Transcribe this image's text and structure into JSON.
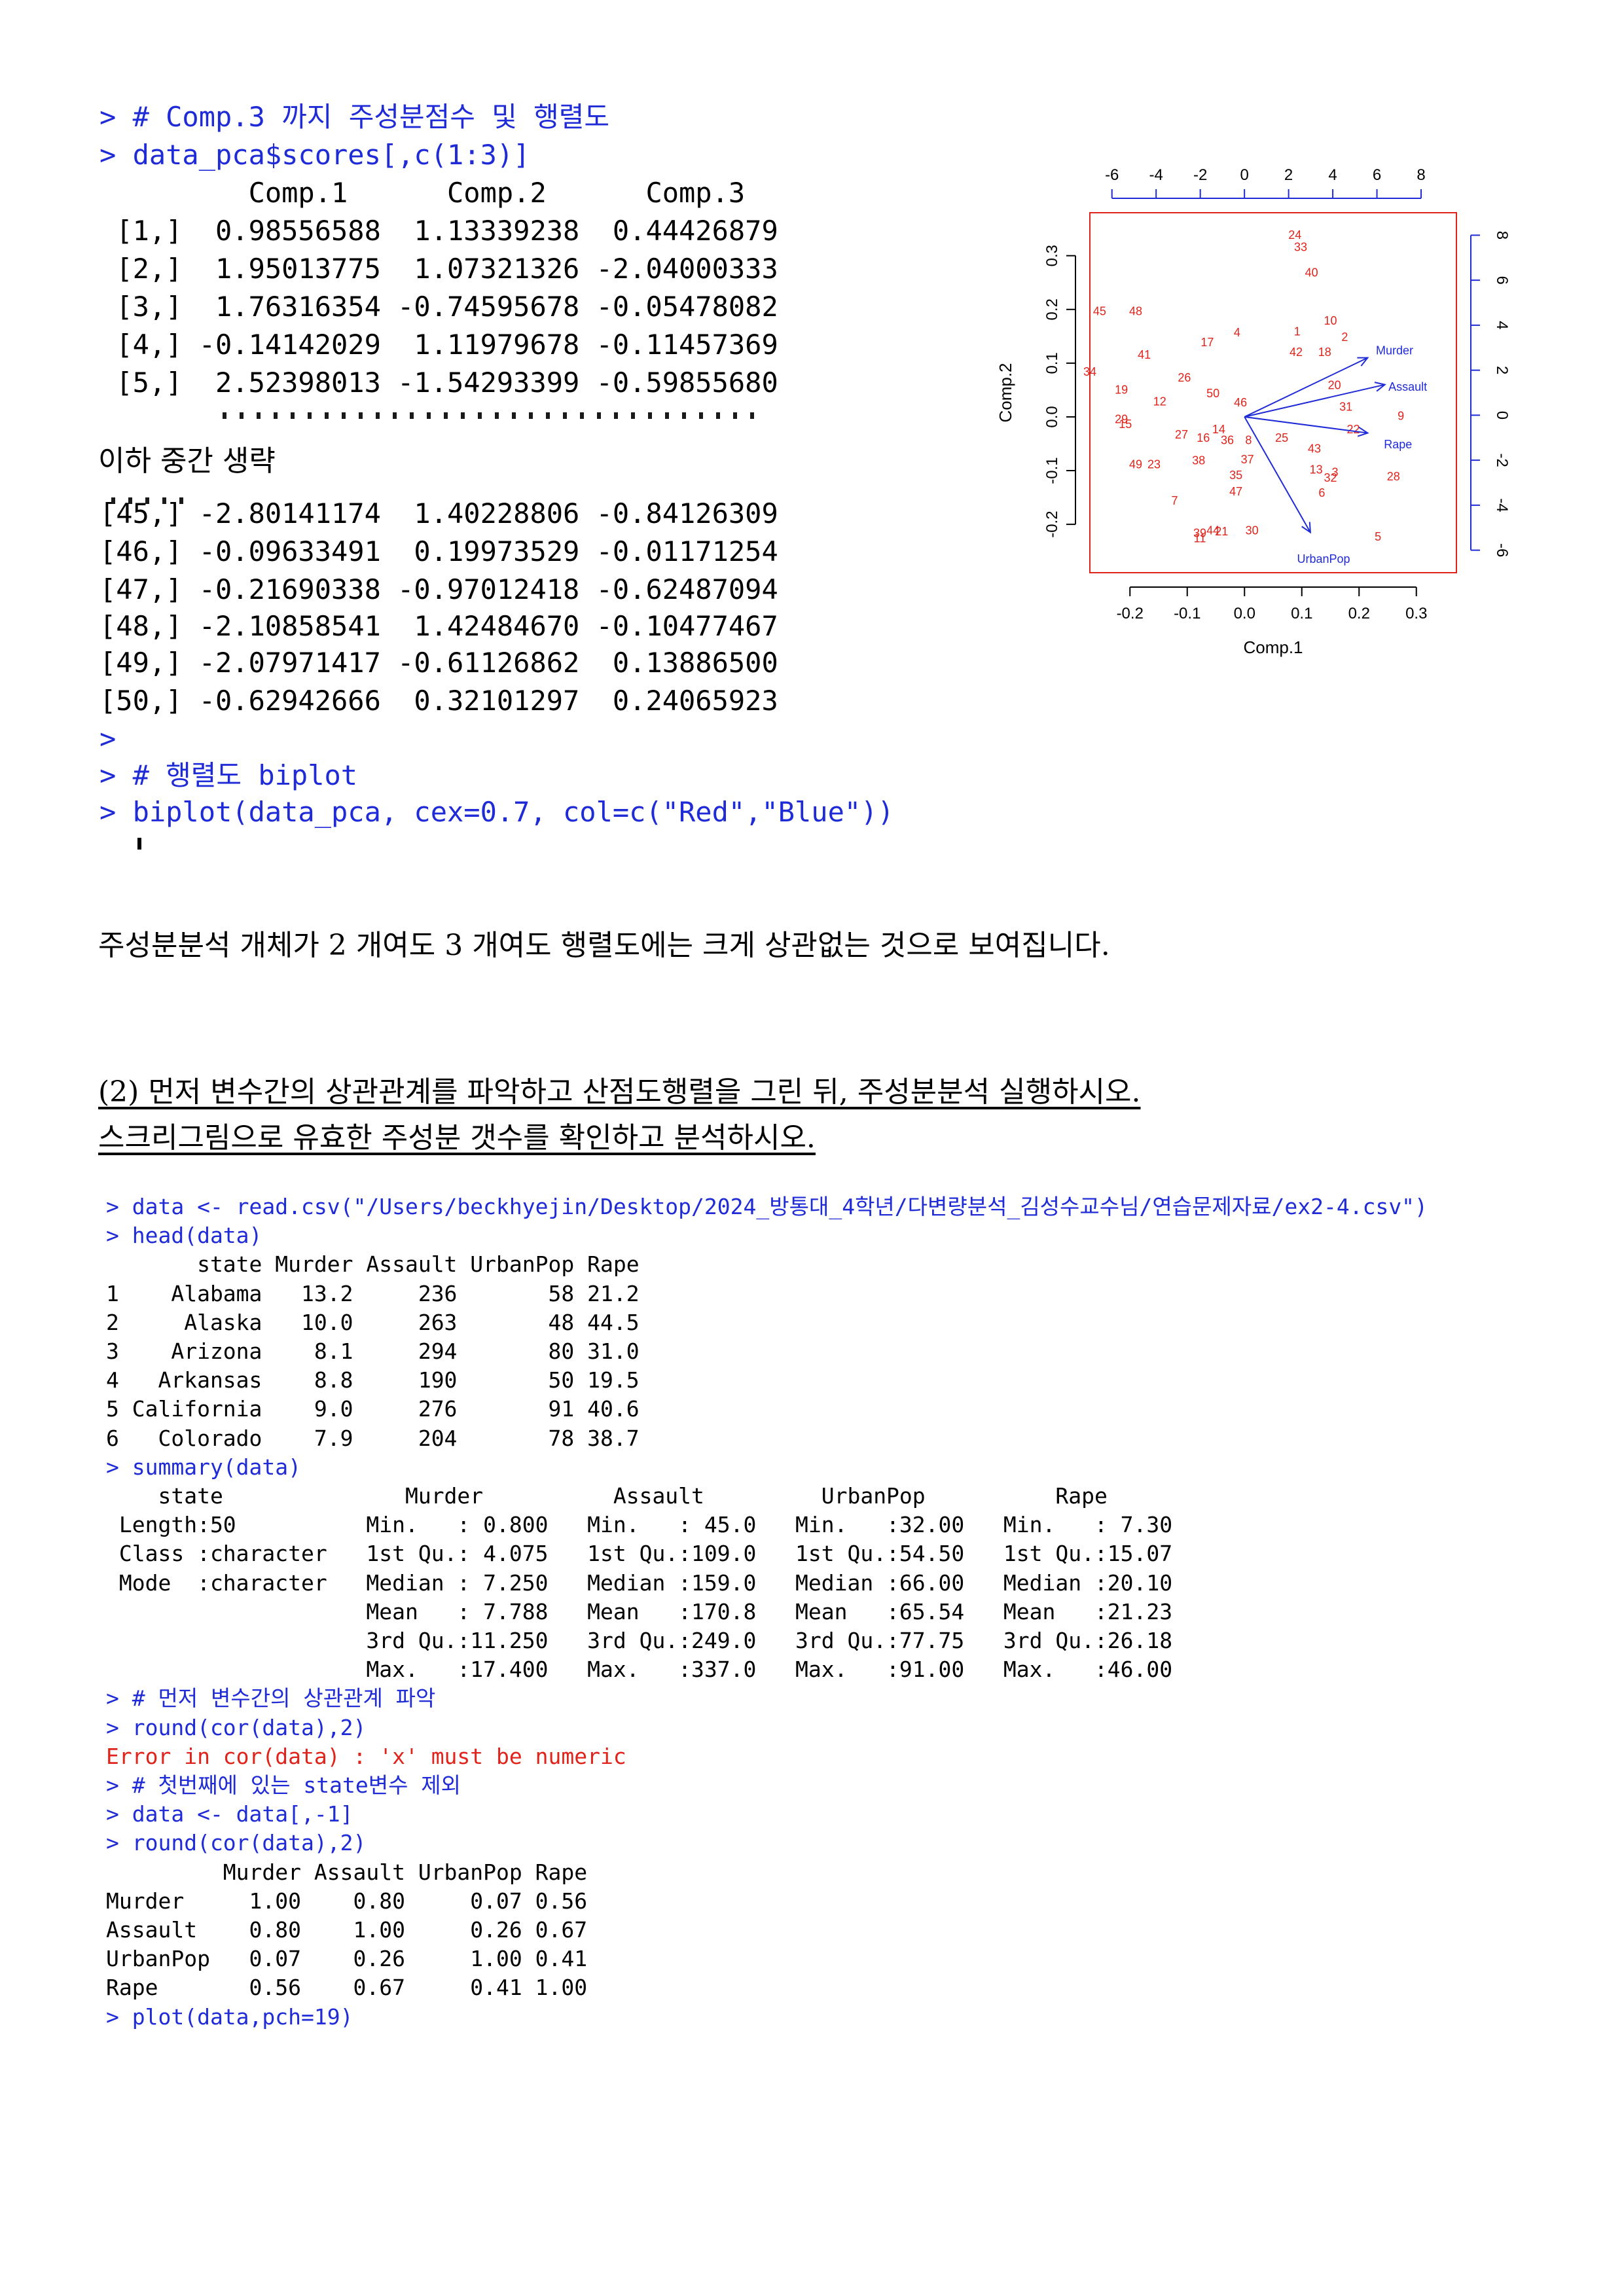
{
  "top_console": {
    "comment_line": "> # Comp.3 까지 주성분점수 및 행렬도",
    "command_line": "> data_pca$scores[,c(1:3)]",
    "header_line": "         Comp.1      Comp.2      Comp.3",
    "rows_first": [
      " [1,]  0.98556588  1.13339238  0.44426879",
      " [2,]  1.95013775  1.07321326 -2.04000333",
      " [3,]  1.76316354 -0.74595678 -0.05478082",
      " [4,] -0.14142029  1.11979678 -0.11457369",
      " [5,]  2.52398013 -1.54293399 -0.59855680"
    ],
    "omitted_note": "이하 중간 생략",
    "rows_last": [
      "[45,] -2.80141174  1.40228806 -0.84126309",
      "[46,] -0.09633491  0.19973529 -0.01171254",
      "[47,] -0.21690338 -0.97012418 -0.62487094",
      "[48,] -2.10858541  1.42484670 -0.10477467",
      "[49,] -2.07971417 -0.61126862  0.13886500",
      "[50,] -0.62942666  0.32101297  0.24065923"
    ],
    "prompt_line": ">",
    "biplot_comment": "> # 행렬도 biplot",
    "biplot_command": "> biplot(data_pca, cex=0.7, col=c(\"Red\",\"Blue\"))"
  },
  "conclusion_text": "주성분분석 개체가 2 개여도 3 개여도 행렬도에는 크게 상관없는 것으로 보여집니다.",
  "question": {
    "line1": "(2) 먼저 변수간의 상관관계를 파악하고 산점도행렬을 그린 뒤, 주성분분석 실행하시오.",
    "line2": "스크리그림으로 유효한 주성분 갯수를 확인하고 분석하시오."
  },
  "bottom_console": [
    {
      "text": "> data <- read.csv(\"/Users/beckhyejin/Desktop/2024_방통대_4학년/다변량분석_김성수교수님/연습문제자료/ex2-4.csv\")",
      "color": "blue"
    },
    {
      "text": "> head(data)",
      "color": "blue"
    },
    {
      "text": "       state Murder Assault UrbanPop Rape",
      "color": "black"
    },
    {
      "text": "1    Alabama   13.2     236       58 21.2",
      "color": "black"
    },
    {
      "text": "2     Alaska   10.0     263       48 44.5",
      "color": "black"
    },
    {
      "text": "3    Arizona    8.1     294       80 31.0",
      "color": "black"
    },
    {
      "text": "4   Arkansas    8.8     190       50 19.5",
      "color": "black"
    },
    {
      "text": "5 California    9.0     276       91 40.6",
      "color": "black"
    },
    {
      "text": "6   Colorado    7.9     204       78 38.7",
      "color": "black"
    },
    {
      "text": "> summary(data)",
      "color": "blue"
    },
    {
      "text": "    state              Murder          Assault         UrbanPop          Rape      ",
      "color": "black"
    },
    {
      "text": " Length:50          Min.   : 0.800   Min.   : 45.0   Min.   :32.00   Min.   : 7.30  ",
      "color": "black"
    },
    {
      "text": " Class :character   1st Qu.: 4.075   1st Qu.:109.0   1st Qu.:54.50   1st Qu.:15.07  ",
      "color": "black"
    },
    {
      "text": " Mode  :character   Median : 7.250   Median :159.0   Median :66.00   Median :20.10  ",
      "color": "black"
    },
    {
      "text": "                    Mean   : 7.788   Mean   :170.8   Mean   :65.54   Mean   :21.23  ",
      "color": "black"
    },
    {
      "text": "                    3rd Qu.:11.250   3rd Qu.:249.0   3rd Qu.:77.75   3rd Qu.:26.18  ",
      "color": "black"
    },
    {
      "text": "                    Max.   :17.400   Max.   :337.0   Max.   :91.00   Max.   :46.00  ",
      "color": "black"
    },
    {
      "text": "> # 먼저 변수간의 상관관계 파악",
      "color": "blue"
    },
    {
      "text": "> round(cor(data),2)",
      "color": "blue"
    },
    {
      "text": "Error in cor(data) : 'x' must be numeric",
      "color": "red"
    },
    {
      "text": "> # 첫번째에 있는 state변수 제외",
      "color": "blue"
    },
    {
      "text": "> data <- data[,-1]",
      "color": "blue"
    },
    {
      "text": "> round(cor(data),2)",
      "color": "blue"
    },
    {
      "text": "         Murder Assault UrbanPop Rape",
      "color": "black"
    },
    {
      "text": "Murder     1.00    0.80     0.07 0.56",
      "color": "black"
    },
    {
      "text": "Assault    0.80    1.00     0.26 0.67",
      "color": "black"
    },
    {
      "text": "UrbanPop   0.07    0.26     1.00 0.41",
      "color": "black"
    },
    {
      "text": "Rape       0.56    0.67     0.41 1.00",
      "color": "black"
    },
    {
      "text": "> plot(data,pch=19)",
      "color": "blue"
    }
  ],
  "chart_data": {
    "type": "scatter",
    "title": "",
    "xlabel": "Comp.1",
    "ylabel": "Comp.2",
    "xlim": [
      -0.27,
      0.37
    ],
    "ylim": [
      -0.29,
      0.38
    ],
    "x_ticks": [
      "-0.2",
      "-0.1",
      "0.0",
      "0.1",
      "0.2",
      "0.3"
    ],
    "y_ticks": [
      "-0.2",
      "-0.1",
      "0.0",
      "0.1",
      "0.2",
      "0.3"
    ],
    "top_ticks": [
      "-6",
      "-4",
      "-2",
      "0",
      "2",
      "4",
      "6",
      "8"
    ],
    "right_ticks": [
      "-6",
      "-4",
      "-2",
      "0",
      "2",
      "4",
      "6",
      "8"
    ],
    "point_color": "#e0241c",
    "arrow_color": "#1f2bd6",
    "frame_color": "#e0241c",
    "points": [
      {
        "label": "24",
        "x": 0.088,
        "y": 0.34
      },
      {
        "label": "33",
        "x": 0.098,
        "y": 0.317
      },
      {
        "label": "40",
        "x": 0.117,
        "y": 0.27
      },
      {
        "label": "45",
        "x": -0.253,
        "y": 0.198
      },
      {
        "label": "48",
        "x": -0.19,
        "y": 0.198
      },
      {
        "label": "10",
        "x": 0.15,
        "y": 0.18
      },
      {
        "label": "4",
        "x": -0.013,
        "y": 0.158
      },
      {
        "label": "1",
        "x": 0.092,
        "y": 0.16
      },
      {
        "label": "2",
        "x": 0.175,
        "y": 0.15
      },
      {
        "label": "17",
        "x": -0.065,
        "y": 0.14
      },
      {
        "label": "42",
        "x": 0.09,
        "y": 0.122
      },
      {
        "label": "18",
        "x": 0.14,
        "y": 0.122
      },
      {
        "label": "41",
        "x": -0.175,
        "y": 0.117
      },
      {
        "label": "34",
        "x": -0.27,
        "y": 0.085
      },
      {
        "label": "26",
        "x": -0.105,
        "y": 0.074
      },
      {
        "label": "19",
        "x": -0.215,
        "y": 0.052
      },
      {
        "label": "50",
        "x": -0.055,
        "y": 0.045
      },
      {
        "label": "12",
        "x": -0.148,
        "y": 0.03
      },
      {
        "label": "46",
        "x": -0.007,
        "y": 0.028
      },
      {
        "label": "20",
        "x": 0.157,
        "y": 0.06
      },
      {
        "label": "31",
        "x": 0.177,
        "y": 0.02
      },
      {
        "label": "9",
        "x": 0.273,
        "y": 0.003
      },
      {
        "label": "29",
        "x": -0.215,
        "y": -0.003
      },
      {
        "label": "15",
        "x": -0.208,
        "y": -0.012
      },
      {
        "label": "14",
        "x": -0.045,
        "y": -0.022
      },
      {
        "label": "27",
        "x": -0.11,
        "y": -0.032
      },
      {
        "label": "16",
        "x": -0.072,
        "y": -0.038
      },
      {
        "label": "36",
        "x": -0.03,
        "y": -0.042
      },
      {
        "label": "8",
        "x": 0.007,
        "y": -0.042
      },
      {
        "label": "25",
        "x": 0.065,
        "y": -0.038
      },
      {
        "label": "22",
        "x": 0.19,
        "y": -0.022
      },
      {
        "label": "43",
        "x": 0.122,
        "y": -0.058
      },
      {
        "label": "37",
        "x": 0.005,
        "y": -0.078
      },
      {
        "label": "38",
        "x": -0.08,
        "y": -0.08
      },
      {
        "label": "49",
        "x": -0.19,
        "y": -0.087
      },
      {
        "label": "23",
        "x": -0.158,
        "y": -0.087
      },
      {
        "label": "35",
        "x": -0.015,
        "y": -0.107
      },
      {
        "label": "13",
        "x": 0.125,
        "y": -0.097
      },
      {
        "label": "32",
        "x": 0.15,
        "y": -0.112
      },
      {
        "label": "3",
        "x": 0.158,
        "y": -0.102
      },
      {
        "label": "28",
        "x": 0.26,
        "y": -0.11
      },
      {
        "label": "47",
        "x": -0.015,
        "y": -0.138
      },
      {
        "label": "6",
        "x": 0.135,
        "y": -0.14
      },
      {
        "label": "7",
        "x": -0.122,
        "y": -0.155
      },
      {
        "label": "39",
        "x": -0.078,
        "y": -0.215
      },
      {
        "label": "11",
        "x": -0.078,
        "y": -0.225
      },
      {
        "label": "44",
        "x": -0.055,
        "y": -0.21
      },
      {
        "label": "21",
        "x": -0.04,
        "y": -0.212
      },
      {
        "label": "30",
        "x": 0.013,
        "y": -0.21
      },
      {
        "label": "5",
        "x": 0.233,
        "y": -0.222
      }
    ],
    "arrows": [
      {
        "label": "Murder",
        "x": 0.215,
        "y": 0.11,
        "lx": 0.262,
        "ly": 0.125
      },
      {
        "label": "Assault",
        "x": 0.245,
        "y": 0.06,
        "lx": 0.285,
        "ly": 0.057
      },
      {
        "label": "Rape",
        "x": 0.215,
        "y": -0.03,
        "lx": 0.268,
        "ly": -0.05
      },
      {
        "label": "UrbanPop",
        "x": 0.115,
        "y": -0.215,
        "lx": 0.138,
        "ly": -0.263
      }
    ]
  }
}
